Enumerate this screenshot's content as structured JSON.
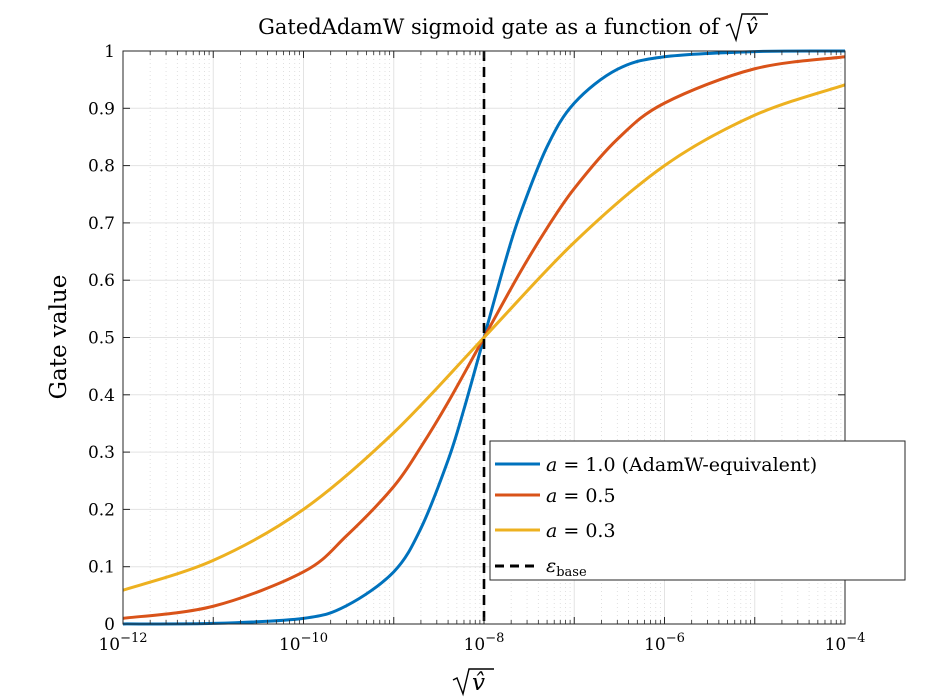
{
  "chart_data": {
    "type": "line",
    "title": "GatedAdamW sigmoid gate as a function of",
    "title_math": "v̂",
    "xlabel": "v̂",
    "ylabel": "Gate value",
    "x_scale": "log",
    "x_range": [
      1e-12,
      0.0001
    ],
    "ylim": [
      0,
      1
    ],
    "x_ticks": [
      {
        "base": "10",
        "exp": "−12"
      },
      {
        "base": "10",
        "exp": "−10"
      },
      {
        "base": "10",
        "exp": "−8"
      },
      {
        "base": "10",
        "exp": "−6"
      },
      {
        "base": "10",
        "exp": "−4"
      }
    ],
    "y_ticks": [
      "0",
      "0.1",
      "0.2",
      "0.3",
      "0.4",
      "0.5",
      "0.6",
      "0.7",
      "0.8",
      "0.9",
      "1"
    ],
    "grid": true,
    "legend_position": "lower-right",
    "series": [
      {
        "name": "a = 1.0 (AdamW-equivalent)",
        "name_var": "a",
        "name_rest": " = 1.0 (AdamW-equivalent)",
        "color": "#0072BD",
        "x": [
          1e-12,
          1e-11,
          1e-10,
          3e-10,
          1e-09,
          2e-09,
          4e-09,
          6e-09,
          1e-08,
          1.7e-08,
          2.5e-08,
          5e-08,
          1e-07,
          3e-07,
          1e-06,
          1e-05,
          0.0001
        ],
        "y": [
          0.0001,
          0.001,
          0.0099,
          0.032,
          0.091,
          0.167,
          0.286,
          0.375,
          0.5,
          0.63,
          0.714,
          0.833,
          0.909,
          0.968,
          0.99,
          0.999,
          1.0
        ]
      },
      {
        "name": "a = 0.5",
        "name_var": "a",
        "name_rest": " = 0.5",
        "color": "#D95319",
        "x": [
          1e-12,
          1e-11,
          1e-10,
          3e-10,
          1e-09,
          2e-09,
          4e-09,
          1e-08,
          2.5e-08,
          5e-08,
          1e-07,
          3e-07,
          1e-06,
          1e-05,
          0.0001
        ],
        "y": [
          0.0099,
          0.031,
          0.091,
          0.154,
          0.24,
          0.309,
          0.387,
          0.5,
          0.613,
          0.691,
          0.76,
          0.846,
          0.909,
          0.969,
          0.99
        ]
      },
      {
        "name": "a = 0.3",
        "name_var": "a",
        "name_rest": " = 0.3",
        "color": "#EDB120",
        "x": [
          1e-12,
          1e-11,
          1e-10,
          1e-09,
          1e-08,
          1e-07,
          1e-06,
          1e-05,
          0.0001
        ],
        "y": [
          0.059,
          0.111,
          0.2,
          0.334,
          0.5,
          0.666,
          0.8,
          0.888,
          0.941
        ]
      }
    ],
    "reference_line": {
      "name": "ε_base",
      "name_main": "ε",
      "name_sub": "base",
      "x": 1e-08,
      "style": "dashed",
      "color": "#000000"
    }
  }
}
